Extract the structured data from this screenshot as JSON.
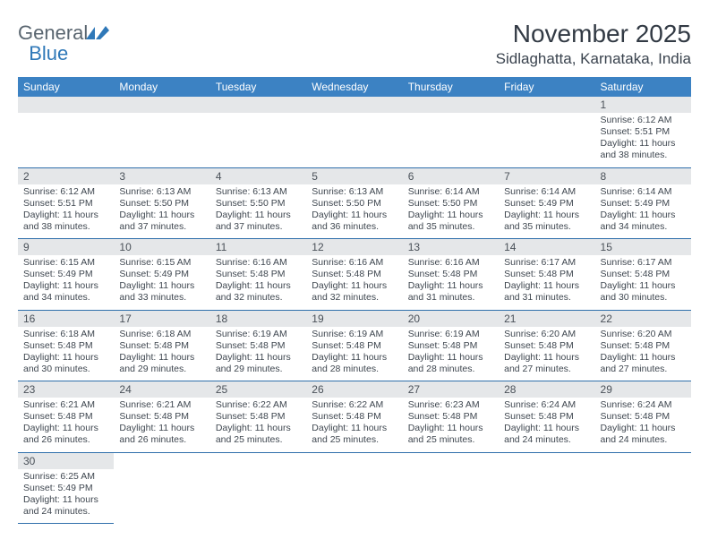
{
  "logo": {
    "word1": "General",
    "word2": "Blue"
  },
  "colors": {
    "header_bg": "#3c82c3",
    "header_text": "#ffffff",
    "daynum_bg": "#e5e7e9",
    "rule": "#2f6fab",
    "logo_gray": "#5a6670",
    "logo_blue": "#2f78b8",
    "text": "#3f4750"
  },
  "title": "November 2025",
  "location": "Sidlaghatta, Karnataka, India",
  "weekdays": [
    "Sunday",
    "Monday",
    "Tuesday",
    "Wednesday",
    "Thursday",
    "Friday",
    "Saturday"
  ],
  "first_weekday_index": 6,
  "days": [
    {
      "n": 1,
      "sr": "6:12 AM",
      "ss": "5:51 PM",
      "dl": "11 hours and 38 minutes."
    },
    {
      "n": 2,
      "sr": "6:12 AM",
      "ss": "5:51 PM",
      "dl": "11 hours and 38 minutes."
    },
    {
      "n": 3,
      "sr": "6:13 AM",
      "ss": "5:50 PM",
      "dl": "11 hours and 37 minutes."
    },
    {
      "n": 4,
      "sr": "6:13 AM",
      "ss": "5:50 PM",
      "dl": "11 hours and 37 minutes."
    },
    {
      "n": 5,
      "sr": "6:13 AM",
      "ss": "5:50 PM",
      "dl": "11 hours and 36 minutes."
    },
    {
      "n": 6,
      "sr": "6:14 AM",
      "ss": "5:50 PM",
      "dl": "11 hours and 35 minutes."
    },
    {
      "n": 7,
      "sr": "6:14 AM",
      "ss": "5:49 PM",
      "dl": "11 hours and 35 minutes."
    },
    {
      "n": 8,
      "sr": "6:14 AM",
      "ss": "5:49 PM",
      "dl": "11 hours and 34 minutes."
    },
    {
      "n": 9,
      "sr": "6:15 AM",
      "ss": "5:49 PM",
      "dl": "11 hours and 34 minutes."
    },
    {
      "n": 10,
      "sr": "6:15 AM",
      "ss": "5:49 PM",
      "dl": "11 hours and 33 minutes."
    },
    {
      "n": 11,
      "sr": "6:16 AM",
      "ss": "5:48 PM",
      "dl": "11 hours and 32 minutes."
    },
    {
      "n": 12,
      "sr": "6:16 AM",
      "ss": "5:48 PM",
      "dl": "11 hours and 32 minutes."
    },
    {
      "n": 13,
      "sr": "6:16 AM",
      "ss": "5:48 PM",
      "dl": "11 hours and 31 minutes."
    },
    {
      "n": 14,
      "sr": "6:17 AM",
      "ss": "5:48 PM",
      "dl": "11 hours and 31 minutes."
    },
    {
      "n": 15,
      "sr": "6:17 AM",
      "ss": "5:48 PM",
      "dl": "11 hours and 30 minutes."
    },
    {
      "n": 16,
      "sr": "6:18 AM",
      "ss": "5:48 PM",
      "dl": "11 hours and 30 minutes."
    },
    {
      "n": 17,
      "sr": "6:18 AM",
      "ss": "5:48 PM",
      "dl": "11 hours and 29 minutes."
    },
    {
      "n": 18,
      "sr": "6:19 AM",
      "ss": "5:48 PM",
      "dl": "11 hours and 29 minutes."
    },
    {
      "n": 19,
      "sr": "6:19 AM",
      "ss": "5:48 PM",
      "dl": "11 hours and 28 minutes."
    },
    {
      "n": 20,
      "sr": "6:19 AM",
      "ss": "5:48 PM",
      "dl": "11 hours and 28 minutes."
    },
    {
      "n": 21,
      "sr": "6:20 AM",
      "ss": "5:48 PM",
      "dl": "11 hours and 27 minutes."
    },
    {
      "n": 22,
      "sr": "6:20 AM",
      "ss": "5:48 PM",
      "dl": "11 hours and 27 minutes."
    },
    {
      "n": 23,
      "sr": "6:21 AM",
      "ss": "5:48 PM",
      "dl": "11 hours and 26 minutes."
    },
    {
      "n": 24,
      "sr": "6:21 AM",
      "ss": "5:48 PM",
      "dl": "11 hours and 26 minutes."
    },
    {
      "n": 25,
      "sr": "6:22 AM",
      "ss": "5:48 PM",
      "dl": "11 hours and 25 minutes."
    },
    {
      "n": 26,
      "sr": "6:22 AM",
      "ss": "5:48 PM",
      "dl": "11 hours and 25 minutes."
    },
    {
      "n": 27,
      "sr": "6:23 AM",
      "ss": "5:48 PM",
      "dl": "11 hours and 25 minutes."
    },
    {
      "n": 28,
      "sr": "6:24 AM",
      "ss": "5:48 PM",
      "dl": "11 hours and 24 minutes."
    },
    {
      "n": 29,
      "sr": "6:24 AM",
      "ss": "5:48 PM",
      "dl": "11 hours and 24 minutes."
    },
    {
      "n": 30,
      "sr": "6:25 AM",
      "ss": "5:49 PM",
      "dl": "11 hours and 24 minutes."
    }
  ],
  "labels": {
    "sunrise": "Sunrise:",
    "sunset": "Sunset:",
    "daylight": "Daylight:"
  }
}
